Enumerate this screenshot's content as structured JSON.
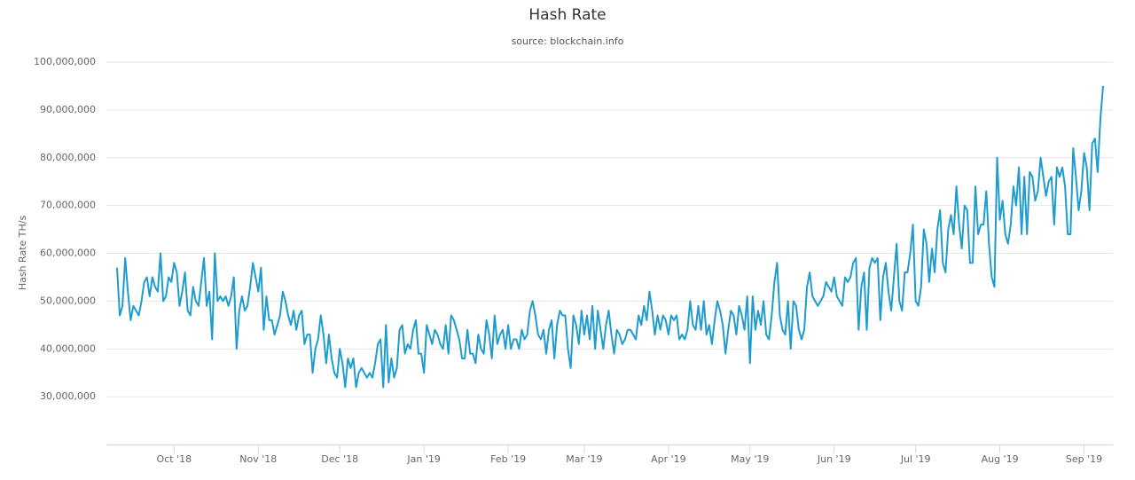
{
  "chart_data": {
    "type": "line",
    "title": "Hash Rate",
    "subtitle": "source: blockchain.info",
    "y_label": "Hash Rate TH/s",
    "ylim": [
      20000000,
      100000000
    ],
    "yticks": [
      {
        "value": 30000000,
        "label": "30,000,000"
      },
      {
        "value": 40000000,
        "label": "40,000,000"
      },
      {
        "value": 50000000,
        "label": "50,000,000"
      },
      {
        "value": 60000000,
        "label": "60,000,000"
      },
      {
        "value": 70000000,
        "label": "70,000,000"
      },
      {
        "value": 80000000,
        "label": "80,000,000"
      },
      {
        "value": 90000000,
        "label": "90,000,000"
      },
      {
        "value": 100000000,
        "label": "100,000,000"
      }
    ],
    "grid": true,
    "categories": [
      null,
      null,
      null,
      null,
      null,
      null,
      null,
      null,
      null,
      null,
      null,
      null,
      null,
      null,
      null,
      null,
      null,
      null,
      null,
      null,
      null,
      "Oct '18",
      null,
      null,
      null,
      null,
      null,
      null,
      null,
      null,
      null,
      null,
      null,
      null,
      null,
      null,
      null,
      null,
      null,
      null,
      null,
      null,
      null,
      null,
      null,
      null,
      null,
      null,
      null,
      null,
      null,
      null,
      "Nov '18",
      null,
      null,
      null,
      null,
      null,
      null,
      null,
      null,
      null,
      null,
      null,
      null,
      null,
      null,
      null,
      null,
      null,
      null,
      null,
      null,
      null,
      null,
      null,
      null,
      null,
      null,
      null,
      null,
      null,
      "Dec '18",
      null,
      null,
      null,
      null,
      null,
      null,
      null,
      null,
      null,
      null,
      null,
      null,
      null,
      null,
      null,
      null,
      null,
      null,
      null,
      null,
      null,
      null,
      null,
      null,
      null,
      null,
      null,
      null,
      null,
      null,
      "Jan '19",
      null,
      null,
      null,
      null,
      null,
      null,
      null,
      null,
      null,
      null,
      null,
      null,
      null,
      null,
      null,
      null,
      null,
      null,
      null,
      null,
      null,
      null,
      null,
      null,
      null,
      null,
      null,
      null,
      null,
      null,
      "Feb '19",
      null,
      null,
      null,
      null,
      null,
      null,
      null,
      null,
      null,
      null,
      null,
      null,
      null,
      null,
      null,
      null,
      null,
      null,
      null,
      null,
      null,
      null,
      null,
      null,
      null,
      null,
      null,
      "Mar '19",
      null,
      null,
      null,
      null,
      null,
      null,
      null,
      null,
      null,
      null,
      null,
      null,
      null,
      null,
      null,
      null,
      null,
      null,
      null,
      null,
      null,
      null,
      null,
      null,
      null,
      null,
      null,
      null,
      null,
      null,
      "Apr '19",
      null,
      null,
      null,
      null,
      null,
      null,
      null,
      null,
      null,
      null,
      null,
      null,
      null,
      null,
      null,
      null,
      null,
      null,
      null,
      null,
      null,
      null,
      null,
      null,
      null,
      null,
      null,
      null,
      null,
      "May '19",
      null,
      null,
      null,
      null,
      null,
      null,
      null,
      null,
      null,
      null,
      null,
      null,
      null,
      null,
      null,
      null,
      null,
      null,
      null,
      null,
      null,
      null,
      null,
      null,
      null,
      null,
      null,
      null,
      null,
      null,
      "Jun '19",
      null,
      null,
      null,
      null,
      null,
      null,
      null,
      null,
      null,
      null,
      null,
      null,
      null,
      null,
      null,
      null,
      null,
      null,
      null,
      null,
      null,
      null,
      null,
      null,
      null,
      null,
      null,
      null,
      null,
      "Jul '19",
      null,
      null,
      null,
      null,
      null,
      null,
      null,
      null,
      null,
      null,
      null,
      null,
      null,
      null,
      null,
      null,
      null,
      null,
      null,
      null,
      null,
      null,
      null,
      null,
      null,
      null,
      null,
      null,
      null,
      null,
      "Aug '19",
      null,
      null,
      null,
      null,
      null,
      null,
      null,
      null,
      null,
      null,
      null,
      null,
      null,
      null,
      null,
      null,
      null,
      null,
      null,
      null,
      null,
      null,
      null,
      null,
      null,
      null,
      null,
      null,
      null,
      null,
      "Sep '19",
      null,
      null,
      null,
      null,
      null,
      null,
      null
    ],
    "series": [
      {
        "name": "Hash Rate",
        "color": "#1f9ccf",
        "values": [
          57000000,
          47000000,
          49000000,
          59000000,
          52000000,
          46000000,
          49000000,
          48000000,
          47000000,
          50000000,
          54000000,
          55000000,
          51000000,
          55000000,
          53000000,
          52000000,
          60000000,
          50000000,
          51000000,
          55000000,
          54000000,
          58000000,
          56000000,
          49000000,
          52000000,
          56000000,
          48000000,
          47000000,
          53000000,
          50000000,
          49000000,
          54000000,
          59000000,
          49000000,
          52000000,
          42000000,
          60000000,
          50000000,
          51000000,
          50000000,
          51000000,
          49000000,
          51000000,
          55000000,
          40000000,
          48000000,
          51000000,
          48000000,
          49000000,
          53000000,
          58000000,
          55000000,
          52000000,
          57000000,
          44000000,
          51000000,
          46000000,
          46000000,
          43000000,
          45000000,
          47000000,
          52000000,
          50000000,
          47000000,
          45000000,
          48000000,
          44000000,
          47000000,
          48000000,
          41000000,
          43000000,
          43000000,
          35000000,
          40000000,
          42000000,
          47000000,
          43000000,
          37000000,
          43000000,
          38000000,
          35000000,
          34000000,
          40000000,
          37000000,
          32000000,
          38000000,
          36000000,
          38000000,
          32000000,
          35000000,
          36000000,
          35000000,
          34000000,
          35000000,
          34000000,
          37000000,
          41000000,
          42000000,
          32000000,
          45000000,
          33000000,
          38000000,
          34000000,
          36000000,
          44000000,
          45000000,
          39000000,
          41000000,
          40000000,
          44000000,
          46000000,
          39000000,
          39000000,
          35000000,
          45000000,
          43000000,
          41000000,
          44000000,
          43000000,
          41000000,
          40000000,
          45000000,
          39000000,
          47000000,
          46000000,
          44000000,
          42000000,
          38000000,
          38000000,
          44000000,
          39000000,
          39000000,
          37000000,
          43000000,
          40000000,
          39000000,
          46000000,
          43000000,
          38000000,
          47000000,
          41000000,
          43000000,
          44000000,
          40000000,
          45000000,
          40000000,
          42000000,
          42000000,
          40000000,
          44000000,
          42000000,
          43000000,
          48000000,
          50000000,
          47000000,
          43000000,
          42000000,
          44000000,
          39000000,
          44000000,
          46000000,
          38000000,
          45000000,
          48000000,
          47000000,
          47000000,
          40000000,
          36000000,
          47000000,
          45000000,
          41000000,
          48000000,
          43000000,
          47000000,
          42000000,
          49000000,
          40000000,
          48000000,
          44000000,
          40000000,
          45000000,
          48000000,
          43000000,
          39000000,
          44000000,
          43000000,
          41000000,
          42000000,
          44000000,
          44000000,
          43000000,
          42000000,
          47000000,
          45000000,
          49000000,
          46000000,
          52000000,
          48000000,
          43000000,
          47000000,
          44000000,
          47000000,
          46000000,
          43000000,
          47000000,
          46000000,
          47000000,
          42000000,
          43000000,
          42000000,
          44000000,
          50000000,
          45000000,
          44000000,
          49000000,
          44000000,
          50000000,
          43000000,
          45000000,
          41000000,
          46000000,
          50000000,
          48000000,
          45000000,
          39000000,
          44000000,
          48000000,
          47000000,
          43000000,
          49000000,
          47000000,
          44000000,
          51000000,
          37000000,
          51000000,
          44000000,
          48000000,
          45000000,
          50000000,
          43000000,
          42000000,
          47000000,
          54000000,
          58000000,
          47000000,
          44000000,
          43000000,
          50000000,
          40000000,
          50000000,
          49000000,
          44000000,
          42000000,
          44000000,
          53000000,
          56000000,
          51000000,
          50000000,
          49000000,
          50000000,
          51000000,
          54000000,
          53000000,
          52000000,
          55000000,
          51000000,
          50000000,
          49000000,
          55000000,
          54000000,
          55000000,
          58000000,
          59000000,
          44000000,
          53000000,
          56000000,
          44000000,
          57000000,
          59000000,
          58000000,
          59000000,
          46000000,
          55000000,
          58000000,
          52000000,
          48000000,
          55000000,
          62000000,
          50000000,
          48000000,
          56000000,
          56000000,
          60000000,
          66000000,
          50000000,
          49000000,
          53000000,
          65000000,
          62000000,
          54000000,
          61000000,
          56000000,
          65000000,
          69000000,
          58000000,
          56000000,
          65000000,
          68000000,
          64000000,
          74000000,
          66000000,
          61000000,
          70000000,
          69000000,
          58000000,
          58000000,
          74000000,
          64000000,
          66000000,
          66000000,
          73000000,
          62000000,
          55000000,
          53000000,
          80000000,
          67000000,
          71000000,
          64000000,
          62000000,
          66000000,
          74000000,
          70000000,
          78000000,
          64000000,
          76000000,
          64000000,
          77000000,
          76000000,
          71000000,
          73000000,
          80000000,
          76000000,
          72000000,
          75000000,
          76000000,
          66000000,
          78000000,
          76000000,
          78000000,
          74000000,
          64000000,
          64000000,
          82000000,
          76000000,
          69000000,
          73000000,
          81000000,
          78000000,
          69000000,
          83000000,
          84000000,
          77000000,
          88000000,
          95000000
        ]
      }
    ]
  }
}
